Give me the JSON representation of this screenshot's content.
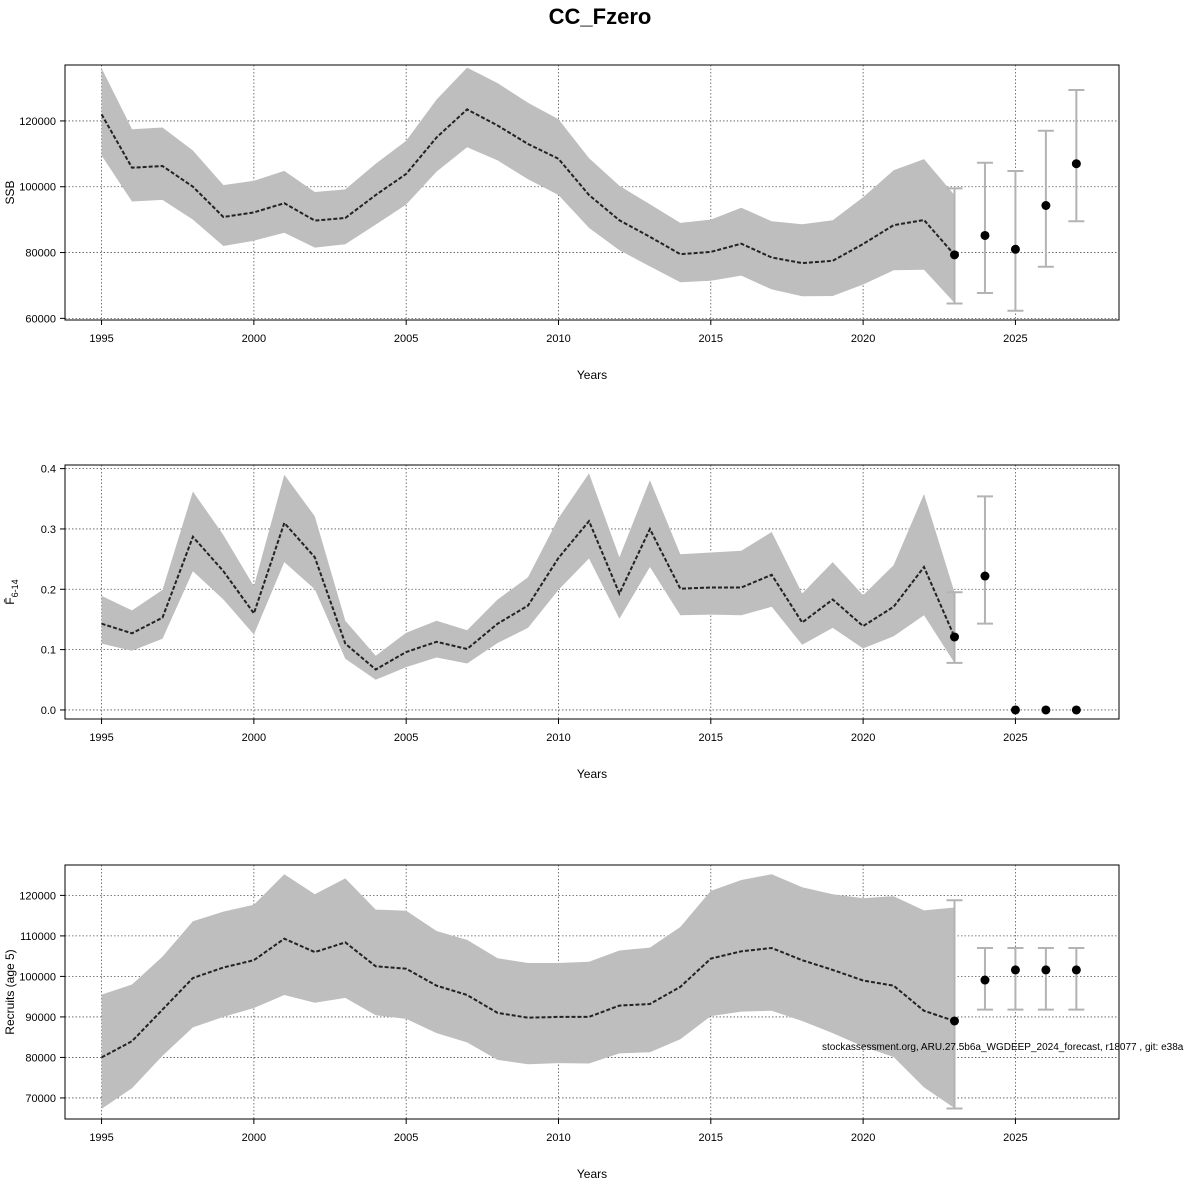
{
  "figure": {
    "title": "CC_Fzero",
    "footer": "stockassessment.org, ARU.27.5b6a_WGDEEP_2024_forecast, r18077 , git: e38a"
  },
  "colors": {
    "band": "#bebebe",
    "errorbar": "#b3b3b3",
    "line": "#222222",
    "grid": "#555555"
  },
  "chart_data": [
    {
      "type": "line",
      "panel": "ssb",
      "xlabel": "Years",
      "ylabel": "SSB",
      "xlim": [
        1993.8,
        2028.4
      ],
      "ylim": [
        59500,
        137000
      ],
      "xticks": [
        1995,
        2000,
        2005,
        2010,
        2015,
        2020,
        2025
      ],
      "xtick_labels": [
        "1995",
        "2000",
        "2005",
        "2010",
        "2015",
        "2020",
        "2025"
      ],
      "yticks": [
        60000,
        80000,
        100000,
        120000
      ],
      "ytick_labels": [
        "60000",
        "80000",
        "100000",
        "120000"
      ],
      "x": [
        1995,
        1996,
        1997,
        1998,
        1999,
        2000,
        2001,
        2002,
        2003,
        2004,
        2005,
        2006,
        2007,
        2008,
        2009,
        2010,
        2011,
        2012,
        2013,
        2014,
        2015,
        2016,
        2017,
        2018,
        2019,
        2020,
        2021,
        2022,
        2023
      ],
      "estimate": [
        122000,
        105800,
        106300,
        100000,
        90800,
        92200,
        95000,
        89700,
        90500,
        97500,
        103900,
        115000,
        123500,
        118600,
        113000,
        108500,
        97500,
        89800,
        84800,
        79500,
        80200,
        82700,
        78500,
        76800,
        77500,
        82600,
        88300,
        89900,
        79300
      ],
      "upper": [
        136000,
        117500,
        118000,
        111000,
        100500,
        101800,
        104800,
        98400,
        99200,
        107000,
        114000,
        126500,
        136200,
        131500,
        125500,
        120500,
        108700,
        100300,
        94700,
        89000,
        90000,
        93600,
        89500,
        88600,
        89800,
        96800,
        105000,
        108400,
        97500
      ],
      "lower": [
        109500,
        95500,
        96000,
        90000,
        82000,
        83600,
        86000,
        81500,
        82500,
        88500,
        94600,
        104600,
        112000,
        108000,
        102300,
        97500,
        87500,
        80700,
        75800,
        71000,
        71400,
        73000,
        68800,
        66700,
        66800,
        70300,
        74600,
        74800,
        64700
      ],
      "forecast": {
        "x": [
          2023,
          2024,
          2025,
          2026,
          2027
        ],
        "median": [
          79300,
          85200,
          81000,
          94300,
          107000
        ],
        "low": [
          64500,
          67700,
          62300,
          75700,
          89500
        ],
        "high": [
          99500,
          107300,
          104800,
          117000,
          129400
        ]
      }
    },
    {
      "type": "line",
      "panel": "fbar",
      "xlabel": "Years",
      "ylabel": "F̄",
      "ylabel_sub": "6-14",
      "xlim": [
        1993.8,
        2028.4
      ],
      "ylim": [
        -0.015,
        0.406
      ],
      "xticks": [
        1995,
        2000,
        2005,
        2010,
        2015,
        2020,
        2025
      ],
      "xtick_labels": [
        "1995",
        "2000",
        "2005",
        "2010",
        "2015",
        "2020",
        "2025"
      ],
      "yticks": [
        0.0,
        0.1,
        0.2,
        0.3,
        0.4
      ],
      "ytick_labels": [
        "0.0",
        "0.1",
        "0.2",
        "0.3",
        "0.4"
      ],
      "x": [
        1995,
        1996,
        1997,
        1998,
        1999,
        2000,
        2001,
        2002,
        2003,
        2004,
        2005,
        2006,
        2007,
        2008,
        2009,
        2010,
        2011,
        2012,
        2013,
        2014,
        2015,
        2016,
        2017,
        2018,
        2019,
        2020,
        2021,
        2022,
        2023
      ],
      "estimate": [
        0.143,
        0.127,
        0.153,
        0.287,
        0.23,
        0.16,
        0.31,
        0.253,
        0.11,
        0.067,
        0.096,
        0.113,
        0.101,
        0.143,
        0.173,
        0.252,
        0.313,
        0.193,
        0.3,
        0.201,
        0.203,
        0.203,
        0.224,
        0.145,
        0.183,
        0.139,
        0.171,
        0.237,
        0.121
      ],
      "upper": [
        0.189,
        0.165,
        0.199,
        0.362,
        0.29,
        0.205,
        0.39,
        0.321,
        0.148,
        0.09,
        0.128,
        0.148,
        0.132,
        0.183,
        0.22,
        0.318,
        0.392,
        0.253,
        0.381,
        0.258,
        0.261,
        0.264,
        0.295,
        0.193,
        0.245,
        0.19,
        0.24,
        0.358,
        0.195
      ],
      "lower": [
        0.11,
        0.098,
        0.118,
        0.23,
        0.183,
        0.125,
        0.245,
        0.2,
        0.085,
        0.05,
        0.071,
        0.087,
        0.077,
        0.111,
        0.136,
        0.199,
        0.251,
        0.151,
        0.237,
        0.157,
        0.158,
        0.157,
        0.171,
        0.108,
        0.136,
        0.102,
        0.122,
        0.157,
        0.078
      ],
      "forecast": {
        "x": [
          2023,
          2024,
          2025,
          2026,
          2027
        ],
        "median": [
          0.121,
          0.222,
          0.0,
          0.0,
          0.0
        ],
        "low": [
          0.078,
          0.143,
          null,
          null,
          null
        ],
        "high": [
          0.195,
          0.354,
          null,
          null,
          null
        ]
      }
    },
    {
      "type": "line",
      "panel": "recruits",
      "xlabel": "Years",
      "ylabel": "Recruits (age 5)",
      "xlim": [
        1993.8,
        2028.4
      ],
      "ylim": [
        64800,
        127500
      ],
      "xticks": [
        1995,
        2000,
        2005,
        2010,
        2015,
        2020,
        2025
      ],
      "xtick_labels": [
        "1995",
        "2000",
        "2005",
        "2010",
        "2015",
        "2020",
        "2025"
      ],
      "yticks": [
        70000,
        80000,
        90000,
        100000,
        110000,
        120000
      ],
      "ytick_labels": [
        "70000",
        "80000",
        "90000",
        "100000",
        "110000",
        "120000"
      ],
      "x": [
        1995,
        1996,
        1997,
        1998,
        1999,
        2000,
        2001,
        2002,
        2003,
        2004,
        2005,
        2006,
        2007,
        2008,
        2009,
        2010,
        2011,
        2012,
        2013,
        2014,
        2015,
        2016,
        2017,
        2018,
        2019,
        2020,
        2021,
        2022,
        2023
      ],
      "estimate": [
        80000,
        84000,
        91800,
        99600,
        102200,
        104000,
        109300,
        106000,
        108400,
        102500,
        101900,
        97700,
        95400,
        91000,
        89800,
        90000,
        90000,
        92800,
        93200,
        97400,
        104400,
        106200,
        107000,
        104000,
        101600,
        99000,
        97700,
        91500,
        89000
      ],
      "upper": [
        95500,
        98000,
        104900,
        113600,
        116000,
        117700,
        125200,
        120300,
        124200,
        116500,
        116200,
        111200,
        109000,
        104500,
        103300,
        103300,
        103600,
        106400,
        107100,
        112200,
        121100,
        123800,
        125200,
        122000,
        120300,
        119300,
        119800,
        116300,
        117000
      ],
      "lower": [
        67300,
        72400,
        80400,
        87400,
        90000,
        92200,
        95400,
        93500,
        94700,
        90400,
        89500,
        86000,
        83700,
        79400,
        78300,
        78600,
        78500,
        81000,
        81300,
        84500,
        90200,
        91300,
        91500,
        89000,
        86000,
        82700,
        80100,
        72600,
        67500
      ],
      "forecast": {
        "x": [
          2023,
          2024,
          2025,
          2026,
          2027
        ],
        "median": [
          89000,
          99100,
          101600,
          101600,
          101600
        ],
        "low": [
          67400,
          91800,
          91800,
          91800,
          91800
        ],
        "high": [
          118800,
          107000,
          107000,
          107000,
          107000
        ]
      }
    }
  ]
}
